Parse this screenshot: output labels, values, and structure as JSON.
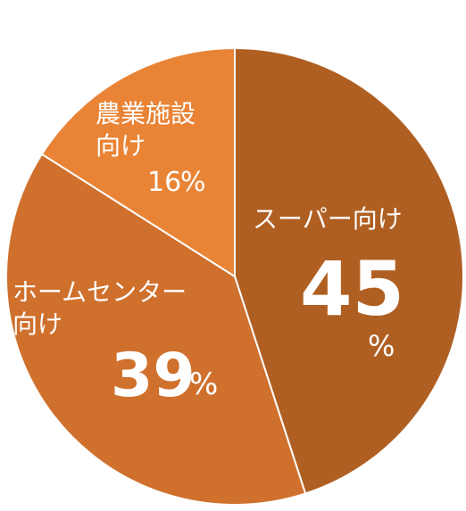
{
  "chart_data": {
    "type": "pie",
    "categories": [
      "スーパー向け",
      "ホームセンター\n向け",
      "農業施設\n向け"
    ],
    "values": [
      45,
      39,
      16
    ],
    "unit": "%",
    "colors": [
      "#b05f22",
      "#d0702d",
      "#e98436"
    ]
  }
}
